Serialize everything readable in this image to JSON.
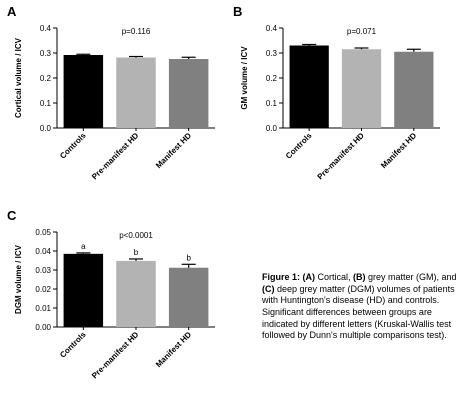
{
  "chart_data": [
    {
      "type": "bar",
      "panel": "A",
      "annotation": "p=0.116",
      "y_label": "Cortical volume / ICV",
      "categories": [
        "Controls",
        "Pre-manifest HD",
        "Manifest HD"
      ],
      "values": [
        0.292,
        0.282,
        0.276
      ],
      "errors": [
        0.003,
        0.004,
        0.007
      ],
      "colors": [
        "#000000",
        "#b3b3b3",
        "#808080"
      ],
      "ylim": [
        0,
        0.4
      ],
      "yticks": [
        {
          "value": 0,
          "label": "0.0"
        },
        0.1,
        0.2,
        0.3,
        0.4
      ]
    },
    {
      "type": "bar",
      "panel": "B",
      "annotation": "p=0.071",
      "y_label": "GM volume / ICV",
      "categories": [
        "Controls",
        "Pre-manifest HD",
        "Manifest HD"
      ],
      "values": [
        0.33,
        0.315,
        0.305
      ],
      "errors": [
        0.004,
        0.005,
        0.01
      ],
      "colors": [
        "#000000",
        "#b3b3b3",
        "#808080"
      ],
      "ylim": [
        0,
        0.4
      ],
      "yticks": [
        {
          "value": 0,
          "label": "0.0"
        },
        0.1,
        0.2,
        0.3,
        0.4
      ]
    },
    {
      "type": "bar",
      "panel": "C",
      "annotation": "p<0.0001",
      "y_label": "DGM volume / ICV",
      "categories": [
        "Controls",
        "Pre-manifest HD",
        "Manifest HD"
      ],
      "values": [
        0.0385,
        0.0348,
        0.0312
      ],
      "errors": [
        0.0005,
        0.001,
        0.0018
      ],
      "bar_labels": [
        "a",
        "b",
        "b"
      ],
      "colors": [
        "#000000",
        "#b3b3b3",
        "#808080"
      ],
      "ylim": [
        0,
        0.05
      ],
      "yticks": [
        {
          "value": 0,
          "label": "0.00"
        },
        0.01,
        0.02,
        0.03,
        0.04,
        0.05
      ]
    }
  ],
  "caption": [
    {
      "text": "Figure 1: (A)",
      "bold": true
    },
    {
      "text": " Cortical, ",
      "bold": false
    },
    {
      "text": "(B)",
      "bold": true
    },
    {
      "text": " grey matter (GM), and ",
      "bold": false
    },
    {
      "text": "(C)",
      "bold": true
    },
    {
      "text": " deep grey matter (DGM) volumes of patients with Huntington's disease (HD) and controls. Significant differences between groups are indicated by different letters (Kruskal-Wallis test followed by Dunn's multiple comparisons test).",
      "bold": false
    }
  ]
}
